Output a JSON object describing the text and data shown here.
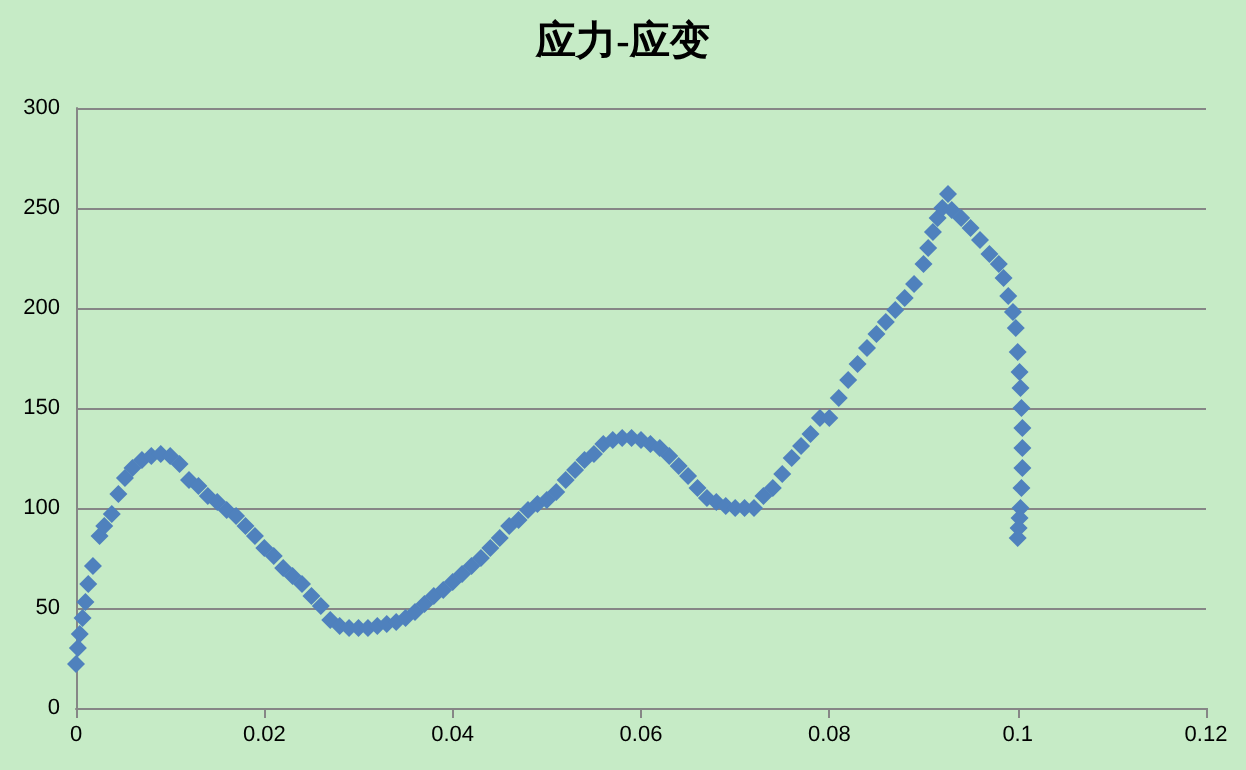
{
  "chart_data": {
    "type": "scatter",
    "title": "应力-应变",
    "marker": "diamond",
    "grid": "y",
    "xlim": [
      0,
      0.12
    ],
    "xticks": [
      0,
      0.02,
      0.04,
      0.06,
      0.08,
      0.1,
      0.12
    ],
    "ylim": [
      0,
      300
    ],
    "yticks": [
      0,
      50,
      100,
      150,
      200,
      250,
      300
    ],
    "series": [
      {
        "color": "#4f81bd",
        "x": [
          0,
          0.0002,
          0.0004,
          0.0007,
          0.001,
          0.0013,
          0.0018,
          0.0025,
          0.003,
          0.0038,
          0.0045,
          0.0052,
          0.006,
          0.007,
          0.008,
          0.009,
          0.01,
          0.011,
          0.012,
          0.013,
          0.014,
          0.015,
          0.016,
          0.017,
          0.018,
          0.019,
          0.02,
          0.021,
          0.022,
          0.023,
          0.024,
          0.025,
          0.026,
          0.027,
          0.028,
          0.029,
          0.03,
          0.031,
          0.032,
          0.033,
          0.034,
          0.035,
          0.036,
          0.037,
          0.038,
          0.039,
          0.04,
          0.041,
          0.042,
          0.043,
          0.044,
          0.045,
          0.046,
          0.047,
          0.048,
          0.049,
          0.05,
          0.051,
          0.052,
          0.053,
          0.054,
          0.055,
          0.056,
          0.057,
          0.058,
          0.059,
          0.06,
          0.061,
          0.062,
          0.063,
          0.064,
          0.065,
          0.066,
          0.067,
          0.068,
          0.069,
          0.07,
          0.071,
          0.072,
          0.073,
          0.074,
          0.075,
          0.076,
          0.077,
          0.078,
          0.079,
          0.08,
          0.081,
          0.082,
          0.083,
          0.084,
          0.085,
          0.086,
          0.087,
          0.088,
          0.089,
          0.09,
          0.0905,
          0.091,
          0.0915,
          0.092,
          0.0926,
          0.093,
          0.094,
          0.095,
          0.096,
          0.097,
          0.098,
          0.0985,
          0.099,
          0.0995,
          0.0998,
          0.1,
          0.1002,
          0.1003,
          0.1004,
          0.1005,
          0.1005,
          0.1005,
          0.1004,
          0.1003,
          0.1002,
          0.1001,
          0.1
        ],
        "values": [
          22,
          30,
          37,
          45,
          53,
          62,
          71,
          86,
          91,
          97,
          107,
          115,
          120,
          124,
          126,
          127,
          126,
          122,
          114,
          111,
          106,
          103,
          99,
          96,
          91,
          86,
          80,
          76,
          70,
          66,
          62,
          56,
          51,
          44,
          41,
          40,
          40,
          40,
          41,
          42,
          43,
          45,
          48,
          52,
          56,
          59,
          63,
          67,
          71,
          75,
          80,
          85,
          91,
          94,
          99,
          102,
          104,
          108,
          114,
          119,
          124,
          127,
          132,
          134,
          135,
          135,
          134,
          132,
          130,
          126,
          121,
          116,
          110,
          105,
          103,
          101,
          100,
          100,
          100,
          106,
          110,
          117,
          125,
          131,
          137,
          145,
          145,
          155,
          164,
          172,
          180,
          187,
          193,
          199,
          205,
          212,
          222,
          230,
          238,
          245,
          250,
          257,
          249,
          245,
          240,
          234,
          227,
          222,
          215,
          206,
          198,
          190,
          178,
          168,
          160,
          150,
          140,
          130,
          120,
          110,
          100,
          95,
          90,
          85
        ]
      }
    ]
  }
}
